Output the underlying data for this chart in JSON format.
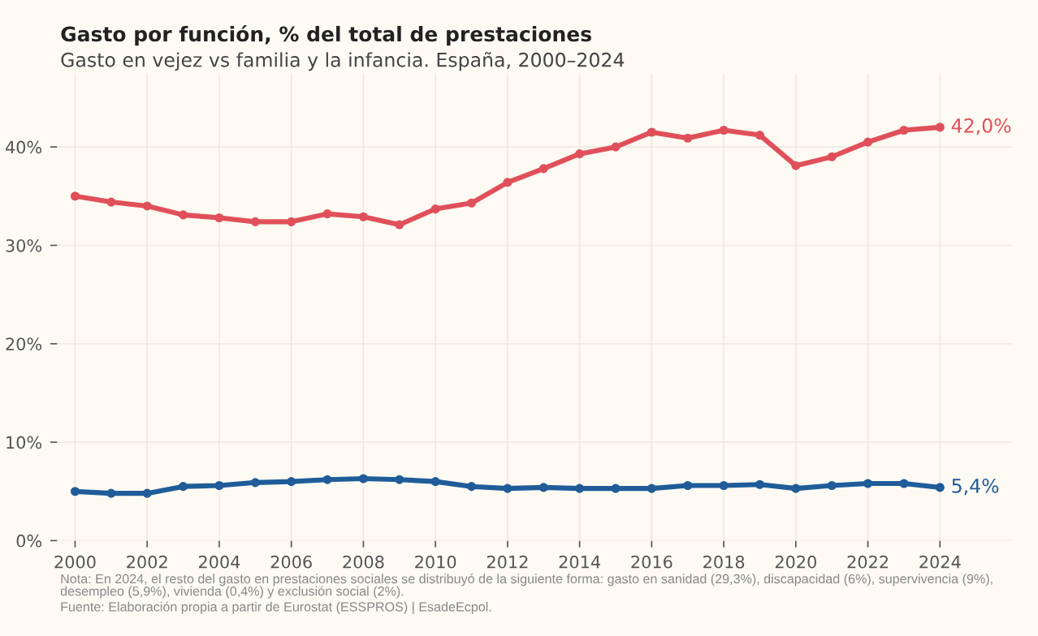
{
  "chart_data": {
    "type": "line",
    "title": "Gasto por función, % del total de prestaciones",
    "subtitle": "Gasto en vejez vs familia y la infancia. España, 2000–2024",
    "x": [
      2000,
      2001,
      2002,
      2003,
      2004,
      2005,
      2006,
      2007,
      2008,
      2009,
      2010,
      2011,
      2012,
      2013,
      2014,
      2015,
      2016,
      2017,
      2018,
      2019,
      2020,
      2021,
      2022,
      2023,
      2024
    ],
    "series": [
      {
        "color": "#e0505a",
        "values": [
          35.0,
          34.4,
          34.0,
          33.1,
          32.8,
          32.4,
          32.4,
          33.2,
          32.9,
          32.1,
          33.7,
          34.3,
          36.4,
          37.8,
          39.3,
          40.0,
          41.5,
          40.9,
          41.7,
          41.2,
          38.1,
          39.0,
          40.5,
          41.7,
          42.0
        ],
        "value_labels": [
          null,
          null,
          null,
          null,
          null,
          null,
          null,
          null,
          null,
          null,
          null,
          null,
          null,
          null,
          null,
          null,
          null,
          null,
          null,
          null,
          null,
          null,
          null,
          null,
          "42,0%"
        ]
      },
      {
        "color": "#1f5c99",
        "values": [
          5.0,
          4.8,
          4.8,
          5.5,
          5.6,
          5.9,
          6.0,
          6.2,
          6.3,
          6.2,
          6.0,
          5.5,
          5.3,
          5.4,
          5.3,
          5.3,
          5.3,
          5.6,
          5.6,
          5.7,
          5.3,
          5.6,
          5.8,
          5.8,
          5.4
        ],
        "value_labels": [
          null,
          null,
          null,
          null,
          null,
          null,
          null,
          null,
          null,
          null,
          null,
          null,
          null,
          null,
          null,
          null,
          null,
          null,
          null,
          null,
          null,
          null,
          null,
          null,
          "5,4%"
        ]
      }
    ],
    "xlim": [
      1999.5,
      2026
    ],
    "xticks": [
      2000,
      2002,
      2004,
      2006,
      2008,
      2010,
      2012,
      2014,
      2016,
      2018,
      2020,
      2022,
      2024
    ],
    "ylim": [
      0,
      47.5
    ],
    "yticks": [
      {
        "value": 0,
        "label": "0%"
      },
      {
        "value": 10,
        "label": "10%"
      },
      {
        "value": 20,
        "label": "20%"
      },
      {
        "value": 30,
        "label": "30%"
      },
      {
        "value": 40,
        "label": "40%"
      }
    ],
    "grid": true,
    "legend": false,
    "marker": "circle",
    "line_style": "solid",
    "annotations": [
      "Nota: En 2024, el resto del gasto en prestaciones sociales se distribuyó de la siguiente forma: gasto en sanidad (29,3%), discapacidad (6%), supervivencia (9%),\ndesempleo (5,9%), vivienda (0,4%) y exclusión social (2%).",
      "Fuente: Elaboración propia a partir de Eurostat (ESSPROS) | EsadeEcpol."
    ]
  }
}
